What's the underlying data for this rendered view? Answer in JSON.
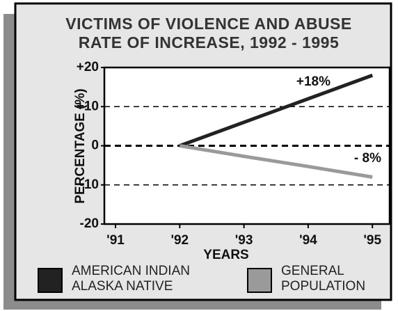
{
  "chart_data": {
    "type": "line",
    "title": "VICTIMS OF VIOLENCE AND ABUSE",
    "subtitle": "RATE OF INCREASE, 1992 - 1995",
    "xlabel": "YEARS",
    "ylabel": "PERCENTAGE (%)",
    "categories": [
      "'91",
      "'92",
      "'93",
      "'94",
      "'95"
    ],
    "series": [
      {
        "name": "AMERICAN INDIAN\nALASKA NATIVE",
        "color": "#222222",
        "values": [
          null,
          0,
          6,
          12,
          18
        ],
        "value_labels": [
          null,
          null,
          null,
          null,
          "+18%"
        ]
      },
      {
        "name": "GENERAL\nPOPULATION",
        "color": "#9a9a9a",
        "values": [
          null,
          0,
          -2.7,
          -5.3,
          -8
        ],
        "value_labels": [
          null,
          null,
          null,
          null,
          "- 8%"
        ]
      }
    ],
    "ylim": [
      -20,
      20
    ],
    "yticks": [
      {
        "value": 20,
        "label": "+20"
      },
      {
        "value": 10,
        "label": "+10"
      },
      0,
      -10,
      -20
    ],
    "grid": true
  }
}
